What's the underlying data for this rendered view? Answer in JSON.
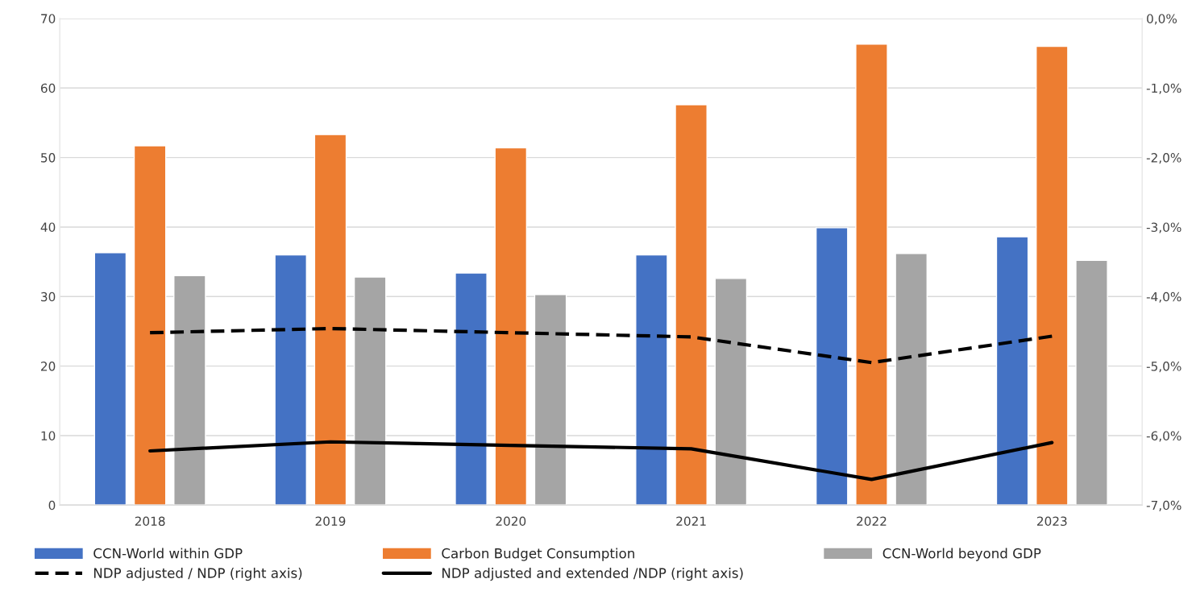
{
  "chart_data": {
    "type": "bar",
    "categories": [
      "2018",
      "2019",
      "2020",
      "2021",
      "2022",
      "2023"
    ],
    "series": [
      {
        "name": "CCN-World within GDP",
        "color": "#4472c4",
        "values": [
          36.3,
          36.0,
          33.4,
          36.0,
          39.9,
          38.6
        ]
      },
      {
        "name": "Carbon Budget Consumption",
        "color": "#ed7d31",
        "values": [
          51.7,
          53.3,
          51.4,
          57.6,
          66.3,
          66.0
        ]
      },
      {
        "name": "CCN-World beyond GDP",
        "color": "#a5a5a5",
        "values": [
          33.0,
          32.8,
          30.3,
          32.6,
          36.2,
          35.2
        ]
      },
      {
        "name": "NDP adjusted / NDP (right axis)",
        "type": "line",
        "axis": "y2",
        "color": "#000000",
        "line_style": "dashed",
        "values": [
          -4.52,
          -4.46,
          -4.52,
          -4.58,
          -4.95,
          -4.57
        ]
      },
      {
        "name": "NDP adjusted and extended /NDP (right axis)",
        "type": "line",
        "axis": "y2",
        "color": "#000000",
        "line_style": "solid",
        "values": [
          -6.22,
          -6.09,
          -6.14,
          -6.19,
          -6.63,
          -6.1
        ]
      }
    ],
    "ylim": [
      0,
      70
    ],
    "yticks": [
      0,
      10,
      20,
      30,
      40,
      50,
      60,
      70
    ],
    "y2lim": [
      -7,
      0
    ],
    "y2ticks": [
      {
        "value": -7,
        "label": "-7,0%"
      },
      {
        "value": -6,
        "label": "-6,0%"
      },
      {
        "value": -5,
        "label": "-5,0%"
      },
      {
        "value": -4,
        "label": "-4,0%"
      },
      {
        "value": -3,
        "label": "-3,0%"
      },
      {
        "value": -2,
        "label": "-2,0%"
      },
      {
        "value": -1,
        "label": "-1,0%"
      },
      {
        "value": 0,
        "label": "0,0%"
      }
    ],
    "grid": "y",
    "legend": "bottom",
    "marker": "none"
  }
}
